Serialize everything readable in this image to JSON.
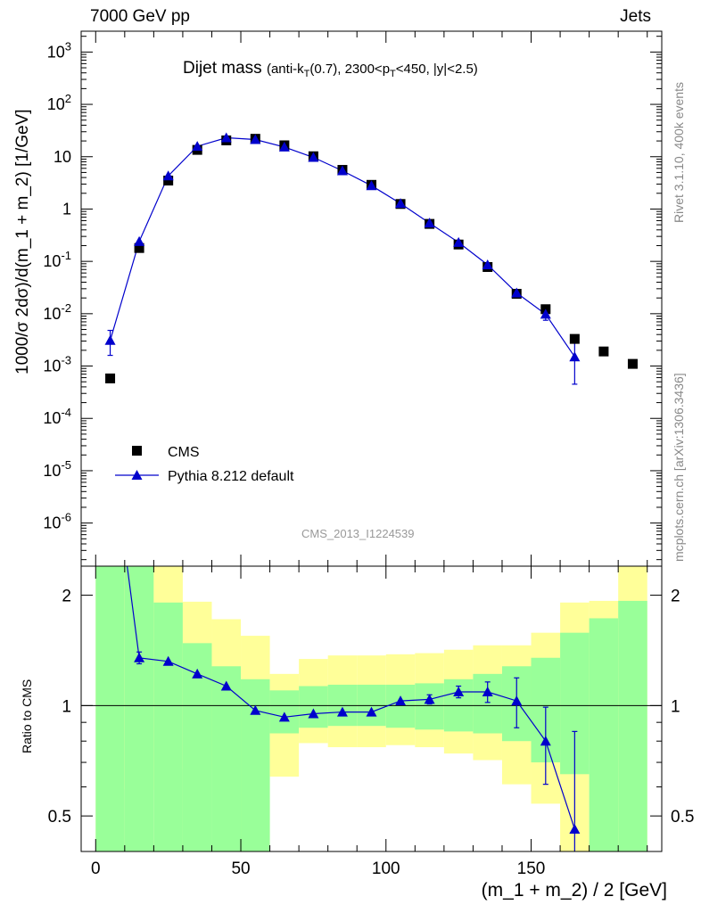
{
  "header": {
    "left": "7000 GeV pp",
    "right": "Jets"
  },
  "side": {
    "rivet": "Rivet 3.1.10,  400k events",
    "mcplots": "mcplots.cern.ch [arXiv:1306.3436]"
  },
  "analysis_id": "CMS_2013_I1224539",
  "chart_data": [
    {
      "type": "scatter",
      "title": "Dijet mass",
      "subtitle": "(anti-k_T(0.7), 2300<p_T<450, |y|<2.5)",
      "xlabel": "(m_1 + m_2) / 2 [GeV]",
      "ylabel": "1000/σ 2dσ)/d(m_1 + m_2) [1/GeV]",
      "yscale": "log",
      "xlim": [
        -5,
        195
      ],
      "ylim": [
        1.5e-07,
        2500.0
      ],
      "y_ticks": [
        "10^{-6}",
        "10^{-5}",
        "10^{-4}",
        "10^{-3}",
        "10^{-2}",
        "10^{-1}",
        "1",
        "10",
        "10^{2}",
        "10^{3}"
      ],
      "legend": "bottom-left",
      "series": [
        {
          "name": "CMS",
          "marker": "square",
          "color": "#000000",
          "x": [
            5,
            15,
            25,
            35,
            45,
            55,
            65,
            75,
            85,
            95,
            105,
            115,
            125,
            135,
            145,
            155,
            165,
            175,
            185
          ],
          "y": [
            0.00058,
            0.18,
            3.5,
            13.5,
            20.5,
            22,
            16.5,
            10.2,
            5.6,
            2.9,
            1.25,
            0.52,
            0.21,
            0.078,
            0.024,
            0.0122,
            0.0033,
            0.0019,
            0.0011
          ]
        },
        {
          "name": "Pythia 8.212 default",
          "marker": "triangle",
          "color": "#0000cc",
          "x": [
            5,
            15,
            25,
            35,
            45,
            55,
            65,
            75,
            85,
            95,
            105,
            115,
            125,
            135,
            145,
            155,
            165
          ],
          "y": [
            0.0031,
            0.24,
            4.3,
            15.8,
            23,
            21.3,
            15.3,
            9.7,
            5.4,
            2.8,
            1.28,
            0.54,
            0.23,
            0.086,
            0.025,
            0.0098,
            0.0015
          ],
          "err_low": [
            0.0015,
            0.0,
            0.0,
            0.0,
            0.0,
            0.0,
            0.0,
            0.0,
            0.0,
            0.0,
            0.0,
            0.0,
            0.0,
            0.0,
            0.0,
            0.0023,
            0.00105
          ],
          "err_high": [
            0.0017,
            0.0,
            0.0,
            0.0,
            0.0,
            0.0,
            0.0,
            0.0,
            0.0,
            0.0,
            0.0,
            0.0,
            0.0,
            0.0,
            0.0,
            0.0023,
            0.0019
          ]
        }
      ]
    },
    {
      "type": "line",
      "ylabel": "Ratio to CMS",
      "xlabel": "(m_1 + m_2) / 2 [GeV]",
      "yscale": "log",
      "xlim": [
        -5,
        195
      ],
      "ylim": [
        0.4,
        2.4
      ],
      "x_ticks": [
        0,
        50,
        100,
        150
      ],
      "y_ticks": [
        0.5,
        1,
        2
      ],
      "reference_line": 1,
      "bands": {
        "bins": [
          [
            0,
            10
          ],
          [
            10,
            20
          ],
          [
            20,
            30
          ],
          [
            30,
            40
          ],
          [
            40,
            50
          ],
          [
            50,
            60
          ],
          [
            60,
            70
          ],
          [
            70,
            80
          ],
          [
            80,
            90
          ],
          [
            90,
            100
          ],
          [
            100,
            110
          ],
          [
            110,
            120
          ],
          [
            120,
            130
          ],
          [
            130,
            140
          ],
          [
            140,
            150
          ],
          [
            150,
            160
          ],
          [
            160,
            170
          ],
          [
            170,
            180
          ],
          [
            180,
            190
          ]
        ],
        "green_color": "#99ff99",
        "yellow_color": "#ffff99",
        "green_low": [
          0.3,
          0.3,
          0.3,
          0.3,
          0.3,
          0.3,
          0.84,
          0.87,
          0.88,
          0.88,
          0.87,
          0.86,
          0.85,
          0.84,
          0.8,
          0.7,
          0.65,
          0.3,
          0.3
        ],
        "green_high": [
          2.4,
          2.4,
          1.91,
          1.48,
          1.28,
          1.18,
          1.1,
          1.13,
          1.14,
          1.14,
          1.14,
          1.15,
          1.18,
          1.22,
          1.28,
          1.35,
          1.58,
          1.73,
          1.93
        ],
        "yellow_low": [
          0.3,
          0.59,
          0.3,
          0.67,
          0.3,
          0.3,
          0.64,
          0.79,
          0.77,
          0.77,
          0.78,
          0.77,
          0.74,
          0.71,
          0.61,
          0.54,
          0.36,
          0.71,
          0.3
        ],
        "yellow_high": [
          2.4,
          2.4,
          2.4,
          1.92,
          1.72,
          1.55,
          1.22,
          1.34,
          1.37,
          1.37,
          1.38,
          1.39,
          1.42,
          1.46,
          1.46,
          1.58,
          1.91,
          1.93,
          2.4
        ]
      },
      "series": [
        {
          "name": "Pythia 8.212 default",
          "marker": "triangle",
          "color": "#0000cc",
          "x": [
            5,
            15,
            25,
            35,
            45,
            55,
            65,
            75,
            85,
            95,
            105,
            115,
            125,
            135,
            145,
            155,
            165
          ],
          "y": [
            5.4,
            1.35,
            1.32,
            1.22,
            1.13,
            0.97,
            0.93,
            0.95,
            0.96,
            0.96,
            1.03,
            1.04,
            1.09,
            1.09,
            1.03,
            0.8,
            0.46
          ],
          "err_low": [
            0.0,
            0.05,
            0.0,
            0.0,
            0.0,
            0.0,
            0.0,
            0.0,
            0.0,
            0.0,
            0.0,
            0.03,
            0.04,
            0.07,
            0.16,
            0.19,
            0.17
          ],
          "err_high": [
            0.0,
            0.05,
            0.0,
            0.0,
            0.0,
            0.0,
            0.0,
            0.0,
            0.0,
            0.0,
            0.0,
            0.03,
            0.04,
            0.07,
            0.16,
            0.19,
            0.39
          ]
        }
      ]
    }
  ]
}
